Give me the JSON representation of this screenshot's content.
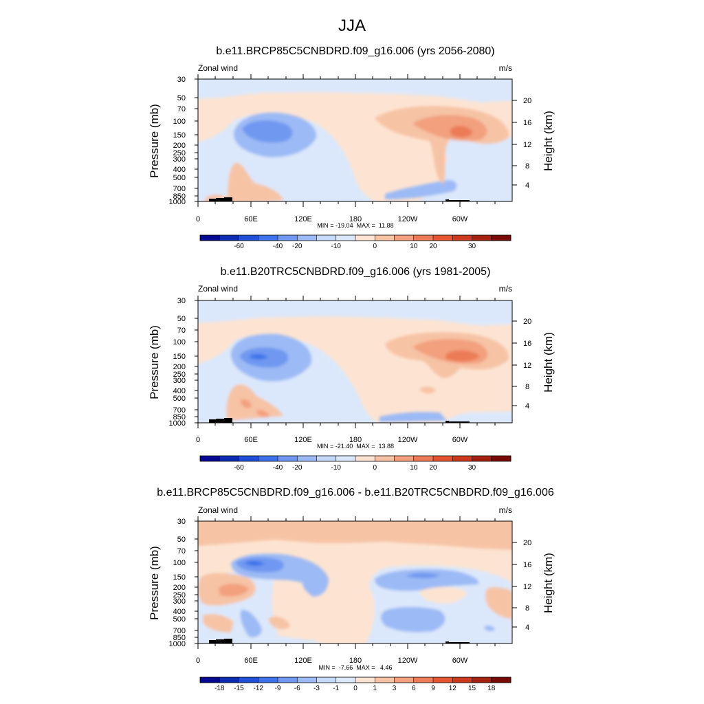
{
  "figure": {
    "title": "JJA"
  },
  "chart_data": [
    {
      "type": "heatmap",
      "title": "b.e11.BRCP85C5CNBDRD.f09_g16.006 (yrs 2056-2080)",
      "left_label": "Zonal wind",
      "units": "m/s",
      "ylabel": "Pressure (mb)",
      "y2label": "Height (km)",
      "pressure_ticks": [
        "30",
        "50",
        "70",
        "100",
        "150",
        "200",
        "250",
        "300",
        "400",
        "500",
        "700",
        "850",
        "1000"
      ],
      "height_ticks": [
        "4",
        "8",
        "12",
        "16",
        "20"
      ],
      "lon_ticks": [
        "0",
        "60E",
        "120E",
        "180",
        "120W",
        "60W"
      ],
      "stats": "MIN = -19.04  MAX =  11.88",
      "colorbar_labels": [
        "-60",
        "-40",
        "-20",
        "-10",
        "0",
        "10",
        "20",
        "30"
      ],
      "colorbar_colors": [
        "#04098f",
        "#0a2cb0",
        "#1f4fd6",
        "#3e72ea",
        "#6f98f0",
        "#9cbaf5",
        "#c5d9f8",
        "#dbe8fb",
        "#fde4d2",
        "#f6c3a5",
        "#f2a07e",
        "#ec7b58",
        "#e65532",
        "#cc3a1d",
        "#a5200f",
        "#780a08"
      ]
    },
    {
      "type": "heatmap",
      "title": "b.e11.B20TRC5CNBDRD.f09_g16.006 (yrs 1981-2005)",
      "left_label": "Zonal wind",
      "units": "m/s",
      "ylabel": "Pressure (mb)",
      "y2label": "Height (km)",
      "pressure_ticks": [
        "30",
        "50",
        "70",
        "100",
        "150",
        "200",
        "250",
        "300",
        "400",
        "500",
        "700",
        "850",
        "1000"
      ],
      "height_ticks": [
        "4",
        "8",
        "12",
        "16",
        "20"
      ],
      "lon_ticks": [
        "0",
        "60E",
        "120E",
        "180",
        "120W",
        "60W"
      ],
      "stats": "MIN = -21.40  MAX =  13.88",
      "colorbar_labels": [
        "-60",
        "-40",
        "-20",
        "-10",
        "0",
        "10",
        "20",
        "30"
      ],
      "colorbar_colors": [
        "#04098f",
        "#0a2cb0",
        "#1f4fd6",
        "#3e72ea",
        "#6f98f0",
        "#9cbaf5",
        "#c5d9f8",
        "#dbe8fb",
        "#fde4d2",
        "#f6c3a5",
        "#f2a07e",
        "#ec7b58",
        "#e65532",
        "#cc3a1d",
        "#a5200f",
        "#780a08"
      ]
    },
    {
      "type": "heatmap",
      "title": "b.e11.BRCP85C5CNBDRD.f09_g16.006 - b.e11.B20TRC5CNBDRD.f09_g16.006",
      "left_label": "Zonal wind",
      "units": "m/s",
      "ylabel": "Pressure (mb)",
      "y2label": "Height (km)",
      "pressure_ticks": [
        "30",
        "50",
        "70",
        "100",
        "150",
        "200",
        "250",
        "300",
        "400",
        "500",
        "700",
        "850",
        "1000"
      ],
      "height_ticks": [
        "4",
        "8",
        "12",
        "16",
        "20"
      ],
      "lon_ticks": [
        "0",
        "60E",
        "120E",
        "180",
        "120W",
        "60W"
      ],
      "stats": "MIN =  -7.66  MAX =   4.46",
      "colorbar_labels": [
        "-18",
        "-15",
        "-12",
        "-9",
        "-6",
        "-3",
        "-1",
        "0",
        "1",
        "3",
        "6",
        "9",
        "12",
        "15",
        "18"
      ],
      "colorbar_colors": [
        "#04098f",
        "#0a2cb0",
        "#1f4fd6",
        "#3e72ea",
        "#6f98f0",
        "#9cbaf5",
        "#c5d9f8",
        "#dbe8fb",
        "#fde4d2",
        "#f6c3a5",
        "#f2a07e",
        "#ec7b58",
        "#e65532",
        "#cc3a1d",
        "#a5200f",
        "#780a08"
      ]
    }
  ]
}
